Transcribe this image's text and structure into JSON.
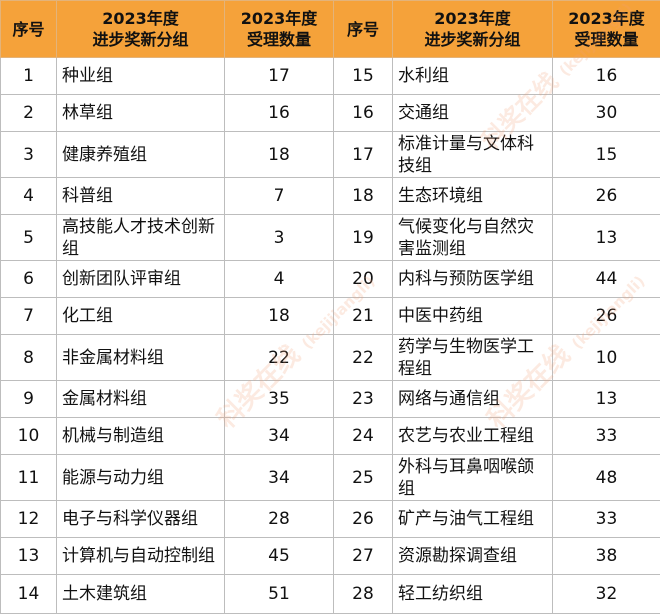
{
  "header": {
    "seq": "序号",
    "group": [
      "2023年度",
      "进步奖新分组"
    ],
    "count": [
      "2023年度",
      "受理数量"
    ]
  },
  "rows": [
    {
      "left": {
        "num": "1",
        "group": "种业组",
        "count": "17"
      },
      "right": {
        "num": "15",
        "group": "水利组",
        "count": "16"
      }
    },
    {
      "left": {
        "num": "2",
        "group": "林草组",
        "count": "16"
      },
      "right": {
        "num": "16",
        "group": "交通组",
        "count": "30"
      }
    },
    {
      "left": {
        "num": "3",
        "group": "健康养殖组",
        "count": "18"
      },
      "right": {
        "num": "17",
        "group": "标准计量与文体科技组",
        "count": "15"
      }
    },
    {
      "left": {
        "num": "4",
        "group": "科普组",
        "count": "7"
      },
      "right": {
        "num": "18",
        "group": "生态环境组",
        "count": "26"
      }
    },
    {
      "left": {
        "num": "5",
        "group": "高技能人才技术创新组",
        "count": "3"
      },
      "right": {
        "num": "19",
        "group": "气候变化与自然灾害监测组",
        "count": "13"
      }
    },
    {
      "left": {
        "num": "6",
        "group": "创新团队评审组",
        "count": "4"
      },
      "right": {
        "num": "20",
        "group": "内科与预防医学组",
        "count": "44"
      }
    },
    {
      "left": {
        "num": "7",
        "group": "化工组",
        "count": "18"
      },
      "right": {
        "num": "21",
        "group": "中医中药组",
        "count": "26"
      }
    },
    {
      "left": {
        "num": "8",
        "group": "非金属材料组",
        "count": "22"
      },
      "right": {
        "num": "22",
        "group": "药学与生物医学工程组",
        "count": "10"
      }
    },
    {
      "left": {
        "num": "9",
        "group": "金属材料组",
        "count": "35"
      },
      "right": {
        "num": "23",
        "group": "网络与通信组",
        "count": "13"
      }
    },
    {
      "left": {
        "num": "10",
        "group": "机械与制造组",
        "count": "34"
      },
      "right": {
        "num": "24",
        "group": "农艺与农业工程组",
        "count": "33"
      }
    },
    {
      "left": {
        "num": "11",
        "group": "能源与动力组",
        "count": "34"
      },
      "right": {
        "num": "25",
        "group": "外科与耳鼻咽喉颌组",
        "count": "48"
      }
    },
    {
      "left": {
        "num": "12",
        "group": "电子与科学仪器组",
        "count": "28"
      },
      "right": {
        "num": "26",
        "group": "矿产与油气工程组",
        "count": "33"
      }
    },
    {
      "left": {
        "num": "13",
        "group": "计算机与自动控制组",
        "count": "45"
      },
      "right": {
        "num": "27",
        "group": "资源勘探调查组",
        "count": "38"
      }
    },
    {
      "left": {
        "num": "14",
        "group": "土木建筑组",
        "count": "51"
      },
      "right": {
        "num": "28",
        "group": "轻工纺织组",
        "count": "32"
      }
    }
  ],
  "watermark": {
    "text": "科奖在线",
    "sub": "(kejijiangli)"
  },
  "colors": {
    "header_bg": "#f5a23a",
    "border": "#bdbdbd",
    "watermark": "#f0a078"
  }
}
